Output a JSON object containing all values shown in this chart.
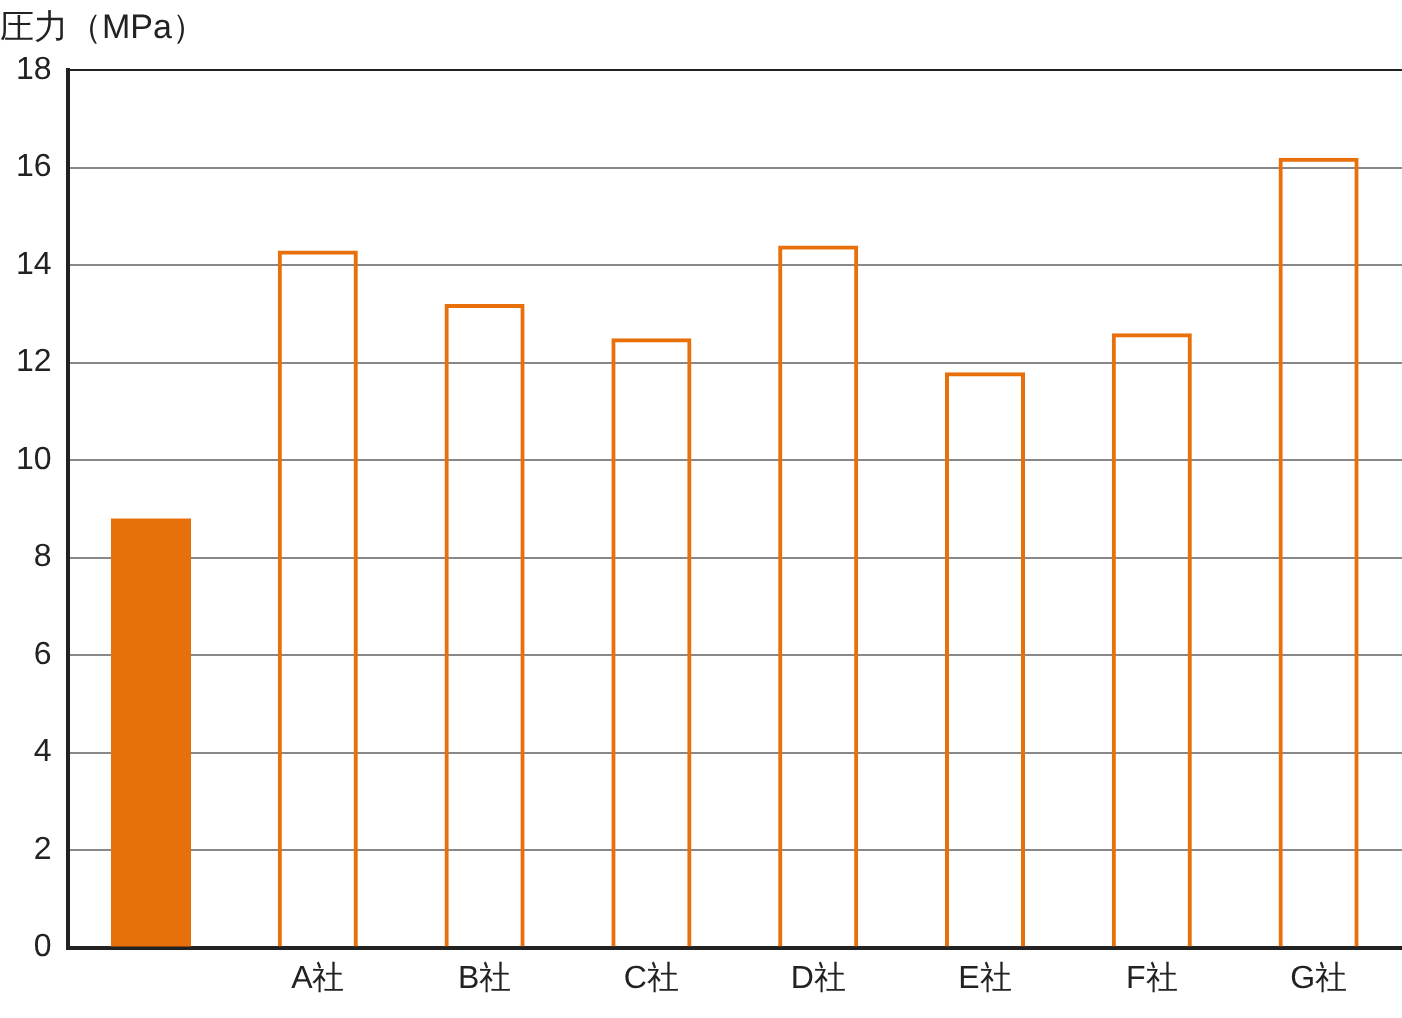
{
  "chart_data": {
    "type": "bar",
    "ylabel": "圧力（MPa）",
    "categories": [
      null,
      "A社",
      "B社",
      "C社",
      "D社",
      "E社",
      "F社",
      "G社"
    ],
    "series": [
      {
        "color": "#e8700a",
        "values": [
          8.8,
          null,
          null,
          null,
          null,
          null,
          null,
          null
        ]
      },
      {
        "color": "#e8700a",
        "values": [
          null,
          14.3,
          13.2,
          12.5,
          14.4,
          11.8,
          12.6,
          16.2
        ]
      }
    ],
    "ylim": [
      0,
      18
    ],
    "yticks": [
      0,
      2,
      4,
      6,
      8,
      10,
      12,
      14,
      16,
      18
    ],
    "grid": "y",
    "legend": false
  }
}
